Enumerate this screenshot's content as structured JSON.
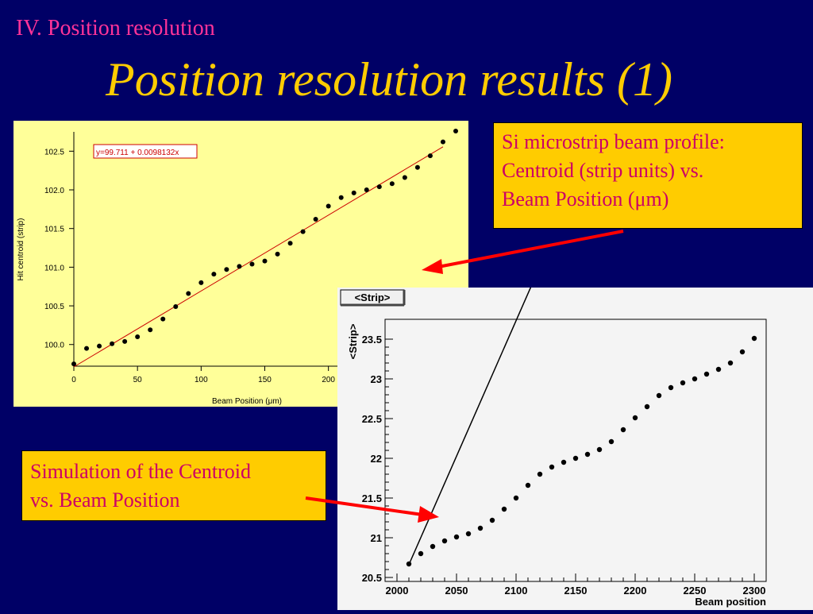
{
  "slide": {
    "section": "IV. Position resolution",
    "title": "Position resolution results (1)"
  },
  "callouts": {
    "measured": {
      "line1": "Si microstrip beam profile:",
      "line2": "Centroid (strip units) vs.",
      "line3": "Beam Position (μm)"
    },
    "simulation": {
      "line1": "Simulation of the Centroid",
      "line2": "vs. Beam Position"
    }
  },
  "colors": {
    "background": "#000066",
    "title": "#ffcc00",
    "section": "#ff3399",
    "callout_bg": "#ffcc00",
    "callout_text": "#cc0066",
    "arrow": "#ff0000",
    "chart1_bg": "#ffff99",
    "fit_line1": "#cc0000"
  },
  "chart_data": [
    {
      "type": "scatter",
      "title": "",
      "xlabel": "Beam Position (μm)",
      "ylabel": "Hit centroid (strip)",
      "xlim": [
        0,
        300
      ],
      "ylim": [
        99.72,
        102.75
      ],
      "xticks": [
        "0",
        "50",
        "100",
        "150",
        "200"
      ],
      "yticks": [
        "100.0",
        "100.5",
        "101.0",
        "101.5",
        "102.0",
        "102.5"
      ],
      "grid": false,
      "fit": {
        "label": "y=99.711 + 0.0098132x",
        "intercept": 99.711,
        "slope": 0.0098132,
        "x_range": [
          0,
          300
        ]
      },
      "series": [
        {
          "x": [
            0,
            10,
            20,
            30,
            40,
            50,
            60,
            70,
            80,
            90,
            100,
            110,
            120,
            130,
            140,
            150,
            160,
            170,
            180,
            190,
            200,
            210,
            220,
            230,
            240,
            250,
            260,
            270,
            280,
            290,
            300
          ],
          "y": [
            99.75,
            99.95,
            99.98,
            100.01,
            100.04,
            100.1,
            100.19,
            100.33,
            100.49,
            100.66,
            100.8,
            100.91,
            100.97,
            101.01,
            101.04,
            101.08,
            101.17,
            101.31,
            101.46,
            101.62,
            101.79,
            101.9,
            101.96,
            102.0,
            102.04,
            102.08,
            102.16,
            102.29,
            102.44,
            102.62,
            102.76
          ]
        }
      ]
    },
    {
      "type": "scatter",
      "title": "<Strip>",
      "xlabel": "Beam position",
      "ylabel": "<Strip>",
      "xlim": [
        1990,
        2310
      ],
      "ylim": [
        20.45,
        23.75
      ],
      "xticks": [
        "2000",
        "2050",
        "2100",
        "2150",
        "2200",
        "2250",
        "2300"
      ],
      "yticks": [
        "20.5",
        "21",
        "21.5",
        "22",
        "22.5",
        "23",
        "23.5"
      ],
      "grid": false,
      "fit": {
        "intercept": -47.94,
        "slope": 0.03413,
        "x_range": [
          2010,
          2300
        ]
      },
      "series": [
        {
          "x": [
            2010,
            2020,
            2030,
            2040,
            2050,
            2060,
            2070,
            2080,
            2090,
            2100,
            2110,
            2120,
            2130,
            2140,
            2150,
            2160,
            2170,
            2180,
            2190,
            2200,
            2210,
            2220,
            2230,
            2240,
            2250,
            2260,
            2270,
            2280,
            2290,
            2300
          ],
          "y": [
            20.67,
            20.8,
            20.89,
            20.96,
            21.01,
            21.05,
            21.12,
            21.22,
            21.36,
            21.5,
            21.66,
            21.8,
            21.89,
            21.95,
            22.0,
            22.05,
            22.11,
            22.21,
            22.36,
            22.51,
            22.65,
            22.79,
            22.89,
            22.95,
            23.0,
            23.06,
            23.12,
            23.2,
            23.34,
            23.51
          ]
        }
      ]
    }
  ]
}
